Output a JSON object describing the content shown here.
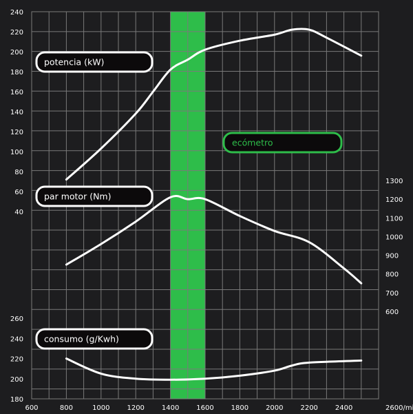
{
  "chart_data": {
    "type": "line",
    "x_unit_label": "2600/min",
    "x_ticks": [
      600,
      800,
      1000,
      1200,
      1400,
      1600,
      1800,
      2000,
      2200,
      2400
    ],
    "xlim": [
      600,
      2600
    ],
    "highlight_band": {
      "label": "ecómetro",
      "x_range": [
        1400,
        1600
      ],
      "color": "#2ebd4a"
    },
    "accent_color": "#2ebd4a",
    "y_axes": [
      {
        "id": "power",
        "side": "left",
        "ylim": [
          40,
          240
        ],
        "ticks": [
          40,
          60,
          80,
          100,
          120,
          140,
          160,
          180,
          200,
          220,
          240
        ]
      },
      {
        "id": "torque",
        "side": "right",
        "ylim": [
          600,
          1300
        ],
        "ticks": [
          600,
          700,
          800,
          900,
          1000,
          1100,
          1200,
          1300
        ]
      },
      {
        "id": "consumption",
        "side": "left",
        "ylim": [
          180,
          260
        ],
        "ticks": [
          180,
          200,
          220,
          240,
          260
        ]
      }
    ],
    "series": [
      {
        "name": "potencia (kW)",
        "axis": "power",
        "x": [
          800,
          1000,
          1200,
          1300,
          1400,
          1500,
          1600,
          1800,
          2000,
          2100,
          2200,
          2300,
          2500
        ],
        "y": [
          72,
          103,
          138,
          160,
          182,
          192,
          202,
          211,
          217,
          222,
          222,
          214,
          196
        ]
      },
      {
        "name": "par motor (Nm)",
        "axis": "torque",
        "x": [
          800,
          1000,
          1200,
          1400,
          1500,
          1600,
          1800,
          2000,
          2200,
          2400,
          2500
        ],
        "y": [
          850,
          960,
          1080,
          1210,
          1200,
          1200,
          1110,
          1030,
          970,
          830,
          750
        ]
      },
      {
        "name": "consumo (g/Kwh)",
        "axis": "consumption",
        "x": [
          800,
          1000,
          1200,
          1400,
          1600,
          1800,
          2000,
          2100,
          2200,
          2500
        ],
        "y": [
          220,
          205,
          200,
          199,
          200,
          203,
          208,
          213,
          216,
          218
        ]
      }
    ]
  }
}
